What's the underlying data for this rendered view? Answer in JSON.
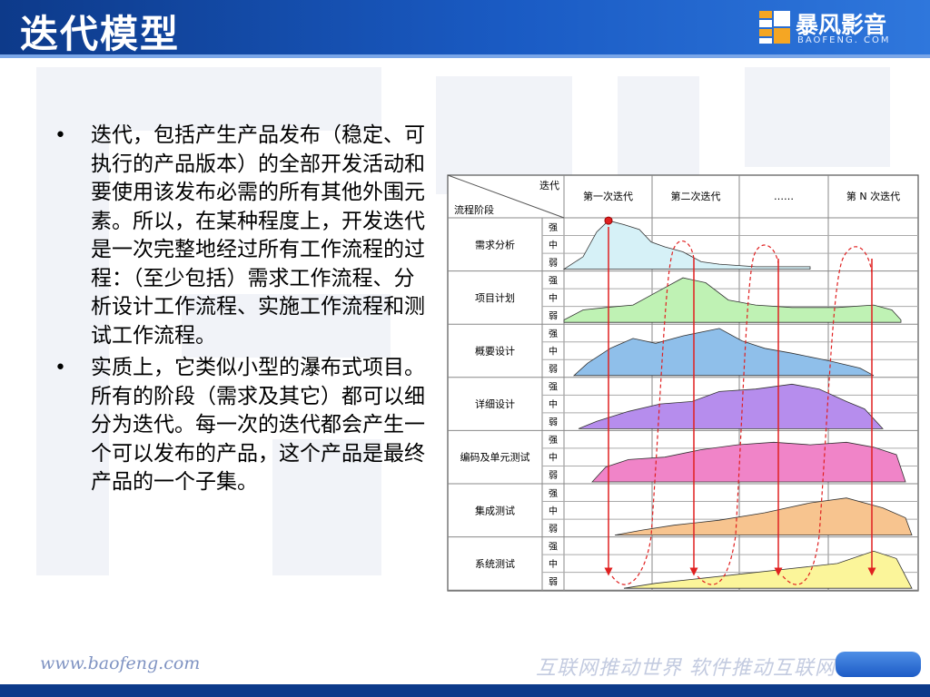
{
  "header": {
    "title": "迭代模型"
  },
  "logo": {
    "name": "暴风影音",
    "subtitle": "BAOFENG. COM"
  },
  "bullets": [
    "迭代，包括产生产品发布（稳定、可执行的产品版本）的全部开发活动和要使用该发布必需的所有其他外围元素。所以，在某种程度上，开发迭代是一次完整地经过所有工作流程的过程：（至少包括）需求工作流程、分析设计工作流程、实施工作流程和测试工作流程。",
    "实质上，它类似小型的瀑布式项目。所有的阶段（需求及其它）都可以细分为迭代。每一次的迭代都会产生一个可以发布的产品，这个产品是最终产品的一个子集。"
  ],
  "diagram": {
    "corner_top": "迭代",
    "corner_bottom": "流程阶段",
    "iterations": [
      "第一次迭代",
      "第二次迭代",
      "……",
      "第 N 次迭代"
    ],
    "levels": [
      "强",
      "中",
      "弱"
    ],
    "phases": [
      {
        "label": "需求分析",
        "color": "#d6f1f7"
      },
      {
        "label": "项目计划",
        "color": "#bff2b4"
      },
      {
        "label": "概要设计",
        "color": "#8fbfea"
      },
      {
        "label": "详细设计",
        "color": "#b68ded"
      },
      {
        "label": "编码及单元测试",
        "color": "#f084c8"
      },
      {
        "label": "集成测试",
        "color": "#f7c48f"
      },
      {
        "label": "系统测试",
        "color": "#fbf59a"
      }
    ],
    "arrow_color": "#e02020"
  },
  "footer": {
    "url": "www.baofeng.com",
    "slogan": "互联网推动世界 软件推动互联网"
  }
}
